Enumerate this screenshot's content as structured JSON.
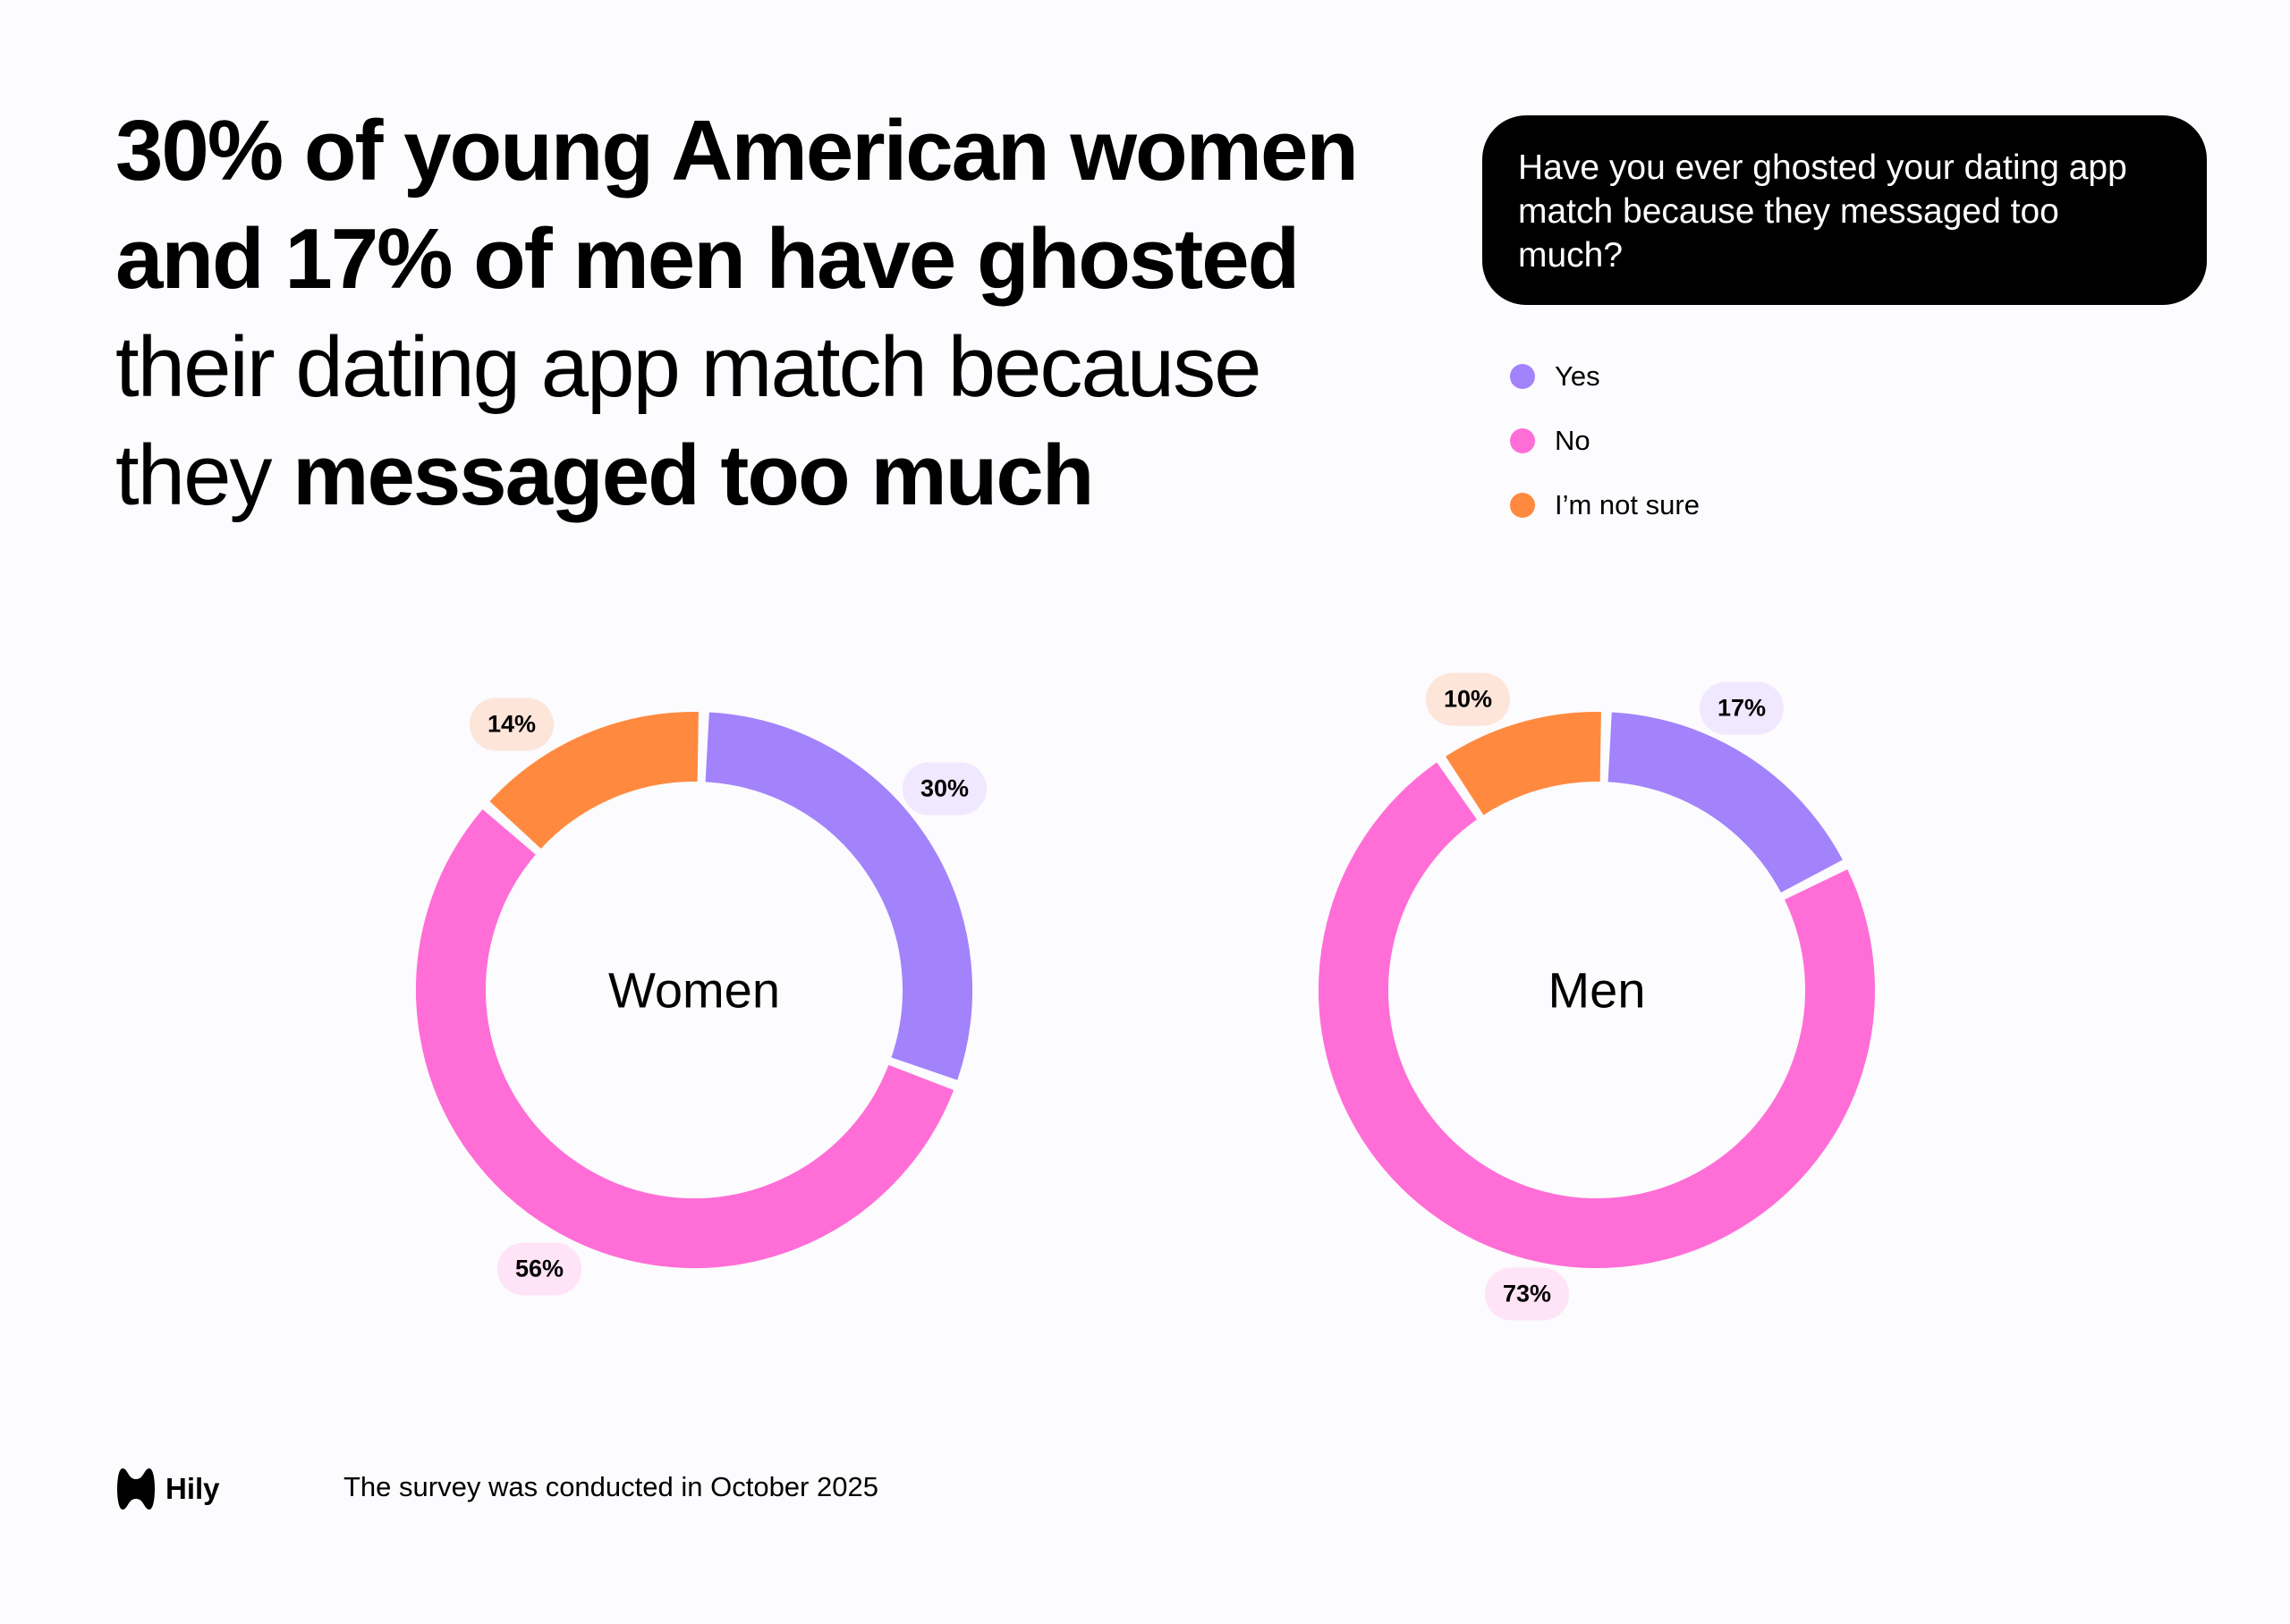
{
  "title": {
    "line1": "30% of young American women",
    "line2": "and 17% of men have ghosted",
    "line3": "their dating app match because",
    "line4_normal": "they ",
    "line4_bold": "messaged too much"
  },
  "question": "Have you ever ghosted your dating app match because they messaged too much?",
  "legend": [
    {
      "label": "Yes",
      "color": "#a283fb"
    },
    {
      "label": "No",
      "color": "#ff6ed6"
    },
    {
      "label": "I’m not sure",
      "color": "#ff8a3f"
    }
  ],
  "chart_data": [
    {
      "type": "pie",
      "title": "Women",
      "categories": [
        "Yes",
        "No",
        "I’m not sure"
      ],
      "values": [
        30,
        56,
        14
      ],
      "labels": [
        "30%",
        "56%",
        "14%"
      ],
      "colors": [
        "#a283fb",
        "#ff6ed6",
        "#ff8a3f"
      ],
      "donut": true
    },
    {
      "type": "pie",
      "title": "Men",
      "categories": [
        "Yes",
        "No",
        "I’m not sure"
      ],
      "values": [
        17,
        73,
        10
      ],
      "labels": [
        "17%",
        "73%",
        "10%"
      ],
      "colors": [
        "#a283fb",
        "#ff6ed6",
        "#ff8a3f"
      ],
      "donut": true
    }
  ],
  "footer": {
    "brand": "Hily",
    "note": "The survey was conducted in October 2025"
  }
}
